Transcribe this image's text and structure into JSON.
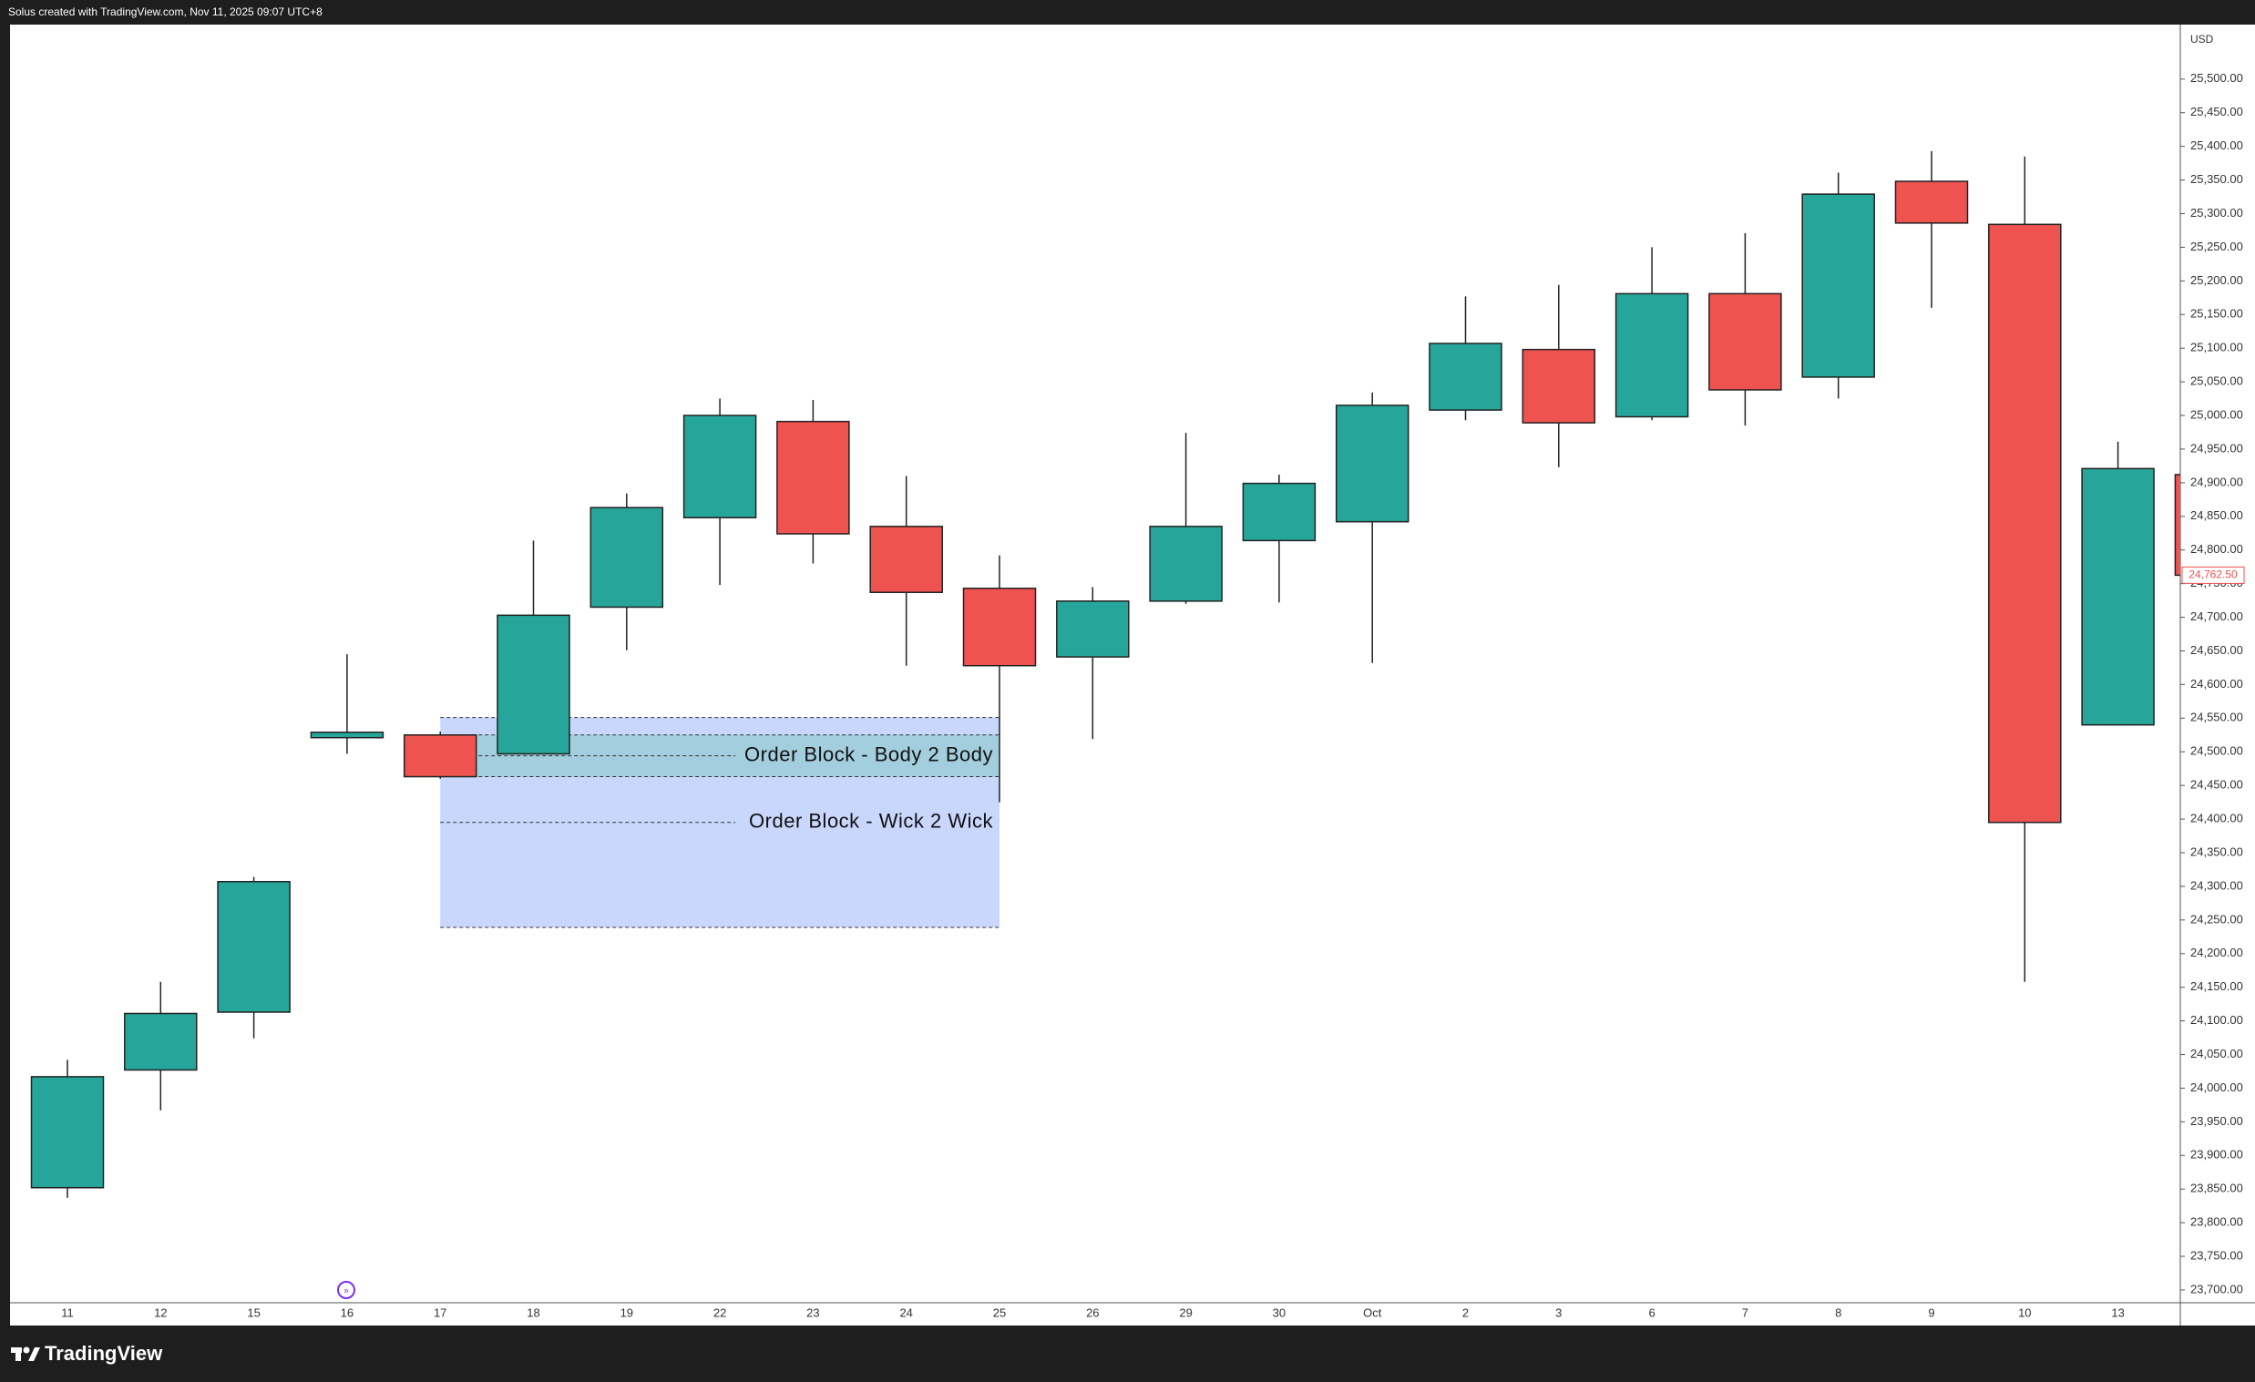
{
  "chart_data": {
    "type": "candlestick",
    "header": "Solus created with TradingView.com, Nov 11, 2025 09:07 UTC+8",
    "currency": "USD",
    "brand": "TradingView",
    "up_color": "#26a69a",
    "down_color": "#ef5350",
    "categories": [
      "11",
      "12",
      "15",
      "16",
      "17",
      "18",
      "19",
      "22",
      "23",
      "24",
      "25",
      "26",
      "29",
      "30",
      "Oct",
      "2",
      "3",
      "6",
      "7",
      "8",
      "9",
      "10",
      "13",
      null
    ],
    "open": [
      23852,
      24027,
      24113,
      24521,
      24525,
      24497,
      24715,
      24848,
      24991,
      24835,
      24743,
      24641,
      24724,
      24814,
      24842,
      25008,
      25098,
      24998,
      25181,
      25057,
      25348,
      25284,
      24540,
      24912
    ],
    "high": [
      24042,
      24158,
      24314,
      24645,
      24530,
      24814,
      24884,
      25025,
      25023,
      24910,
      24792,
      24745,
      24974,
      24912,
      25034,
      25177,
      25194,
      25250,
      25271,
      25361,
      25393,
      25385,
      24961,
      24912
    ],
    "low": [
      23837,
      23967,
      24074,
      24497,
      24460,
      24497,
      24651,
      24748,
      24780,
      24628,
      24425,
      24519,
      24720,
      24722,
      24632,
      24993,
      24923,
      24993,
      24985,
      25025,
      25160,
      24158,
      24540,
      24762.5
    ],
    "close": [
      24017,
      24111,
      24307,
      24529,
      24463,
      24703,
      24863,
      25000,
      24824,
      24737,
      24628,
      24724,
      24835,
      24899,
      25015,
      25107,
      24989,
      25181,
      25038,
      25329,
      25286,
      24395,
      24921,
      24762.5
    ],
    "last_price": {
      "value": 24762.5,
      "label": "24,762.50"
    },
    "zones": [
      {
        "label": "Order Block - Wick 2 Wick",
        "top": 24551,
        "bottom": 24239,
        "color": "#c9d7fd"
      },
      {
        "label": "Order Block - Body 2 Body",
        "top": 24525,
        "bottom": 24463,
        "color": "#9ccdd8"
      }
    ],
    "ylim": [
      23681,
      25581
    ],
    "yticks": [
      {
        "value": 23700,
        "label": "23,700.00"
      },
      {
        "value": 23750,
        "label": "23,750.00"
      },
      {
        "value": 23800,
        "label": "23,800.00"
      },
      {
        "value": 23850,
        "label": "23,850.00"
      },
      {
        "value": 23900,
        "label": "23,900.00"
      },
      {
        "value": 23950,
        "label": "23,950.00"
      },
      {
        "value": 24000,
        "label": "24,000.00"
      },
      {
        "value": 24050,
        "label": "24,050.00"
      },
      {
        "value": 24100,
        "label": "24,100.00"
      },
      {
        "value": 24150,
        "label": "24,150.00"
      },
      {
        "value": 24200,
        "label": "24,200.00"
      },
      {
        "value": 24250,
        "label": "24,250.00"
      },
      {
        "value": 24300,
        "label": "24,300.00"
      },
      {
        "value": 24350,
        "label": "24,350.00"
      },
      {
        "value": 24400,
        "label": "24,400.00"
      },
      {
        "value": 24450,
        "label": "24,450.00"
      },
      {
        "value": 24500,
        "label": "24,500.00"
      },
      {
        "value": 24550,
        "label": "24,550.00"
      },
      {
        "value": 24600,
        "label": "24,600.00"
      },
      {
        "value": 24650,
        "label": "24,650.00"
      },
      {
        "value": 24700,
        "label": "24,700.00"
      },
      {
        "value": 24750,
        "label": "24,750.00"
      },
      {
        "value": 24800,
        "label": "24,800.00"
      },
      {
        "value": 24850,
        "label": "24,850.00"
      },
      {
        "value": 24900,
        "label": "24,900.00"
      },
      {
        "value": 24950,
        "label": "24,950.00"
      },
      {
        "value": 25000,
        "label": "25,000.00"
      },
      {
        "value": 25050,
        "label": "25,050.00"
      },
      {
        "value": 25100,
        "label": "25,100.00"
      },
      {
        "value": 25150,
        "label": "25,150.00"
      },
      {
        "value": 25200,
        "label": "25,200.00"
      },
      {
        "value": 25250,
        "label": "25,250.00"
      },
      {
        "value": 25300,
        "label": "25,300.00"
      },
      {
        "value": 25350,
        "label": "25,350.00"
      },
      {
        "value": 25400,
        "label": "25,400.00"
      },
      {
        "value": 25450,
        "label": "25,450.00"
      },
      {
        "value": 25500,
        "label": "25,500.00"
      }
    ],
    "grid": false
  }
}
